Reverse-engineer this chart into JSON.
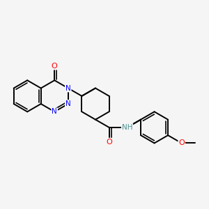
{
  "background_color": "#F5F5F5",
  "bond_color": "#000000",
  "bond_width": 1.4,
  "figsize": [
    3.0,
    3.0
  ],
  "dpi": 100,
  "atom_colors": {
    "N": "#0000FF",
    "O": "#FF0000",
    "H": "#4A9090",
    "C": "#000000"
  },
  "scale": 0.4
}
